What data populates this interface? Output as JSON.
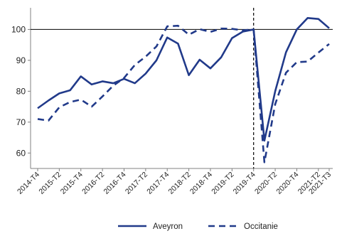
{
  "chart_data": {
    "type": "line",
    "title": "",
    "xlabel": "",
    "ylabel": "",
    "ylim": [
      55,
      107
    ],
    "yticks": [
      60,
      70,
      80,
      90,
      100
    ],
    "reference_line_y": 100,
    "vertical_marker_x": "2019-T4",
    "grid": false,
    "legend_position": "bottom",
    "colors": {
      "series": "#213a8a",
      "axis": "#808080",
      "reference": "#000000"
    },
    "x": [
      "2014-T4",
      "2015-T1",
      "2015-T2",
      "2015-T3",
      "2015-T4",
      "2016-T1",
      "2016-T2",
      "2016-T3",
      "2016-T4",
      "2017-T1",
      "2017-T2",
      "2017-T3",
      "2017-T4",
      "2018-T1",
      "2018-T2",
      "2018-T3",
      "2018-T4",
      "2019-T1",
      "2019-T2",
      "2019-T3",
      "2019-T4",
      "2020-T1",
      "2020-T2",
      "2020-T3",
      "2020-T4",
      "2021-T1",
      "2021-T2",
      "2021-T3"
    ],
    "x_tick_labels": [
      "2014-T4",
      "2015-T2",
      "2015-T4",
      "2016-T2",
      "2016-T4",
      "2017-T2",
      "2017-T4",
      "2018-T2",
      "2018-T4",
      "2019-T2",
      "2019-T4",
      "2020-T2",
      "2020-T4",
      "2021-T2",
      "2021-T3"
    ],
    "series": [
      {
        "name": "Aveyron",
        "style": "solid",
        "values": [
          74.5,
          77.0,
          79.3,
          80.3,
          84.8,
          82.2,
          83.2,
          82.6,
          84.0,
          82.6,
          85.7,
          90.0,
          97.4,
          95.4,
          85.2,
          90.2,
          87.4,
          91.0,
          97.2,
          99.3,
          100.0,
          64.0,
          80.0,
          92.6,
          100.0,
          103.7,
          103.4,
          100.4
        ]
      },
      {
        "name": "Occitanie",
        "style": "dashed",
        "values": [
          71.0,
          70.5,
          74.8,
          76.5,
          77.3,
          75.0,
          78.3,
          81.8,
          84.3,
          88.5,
          91.2,
          94.5,
          101.0,
          101.2,
          98.3,
          100.1,
          99.2,
          100.3,
          100.2,
          99.7,
          100.0,
          57.0,
          75.8,
          86.0,
          89.4,
          89.6,
          92.5,
          95.3
        ]
      }
    ]
  }
}
